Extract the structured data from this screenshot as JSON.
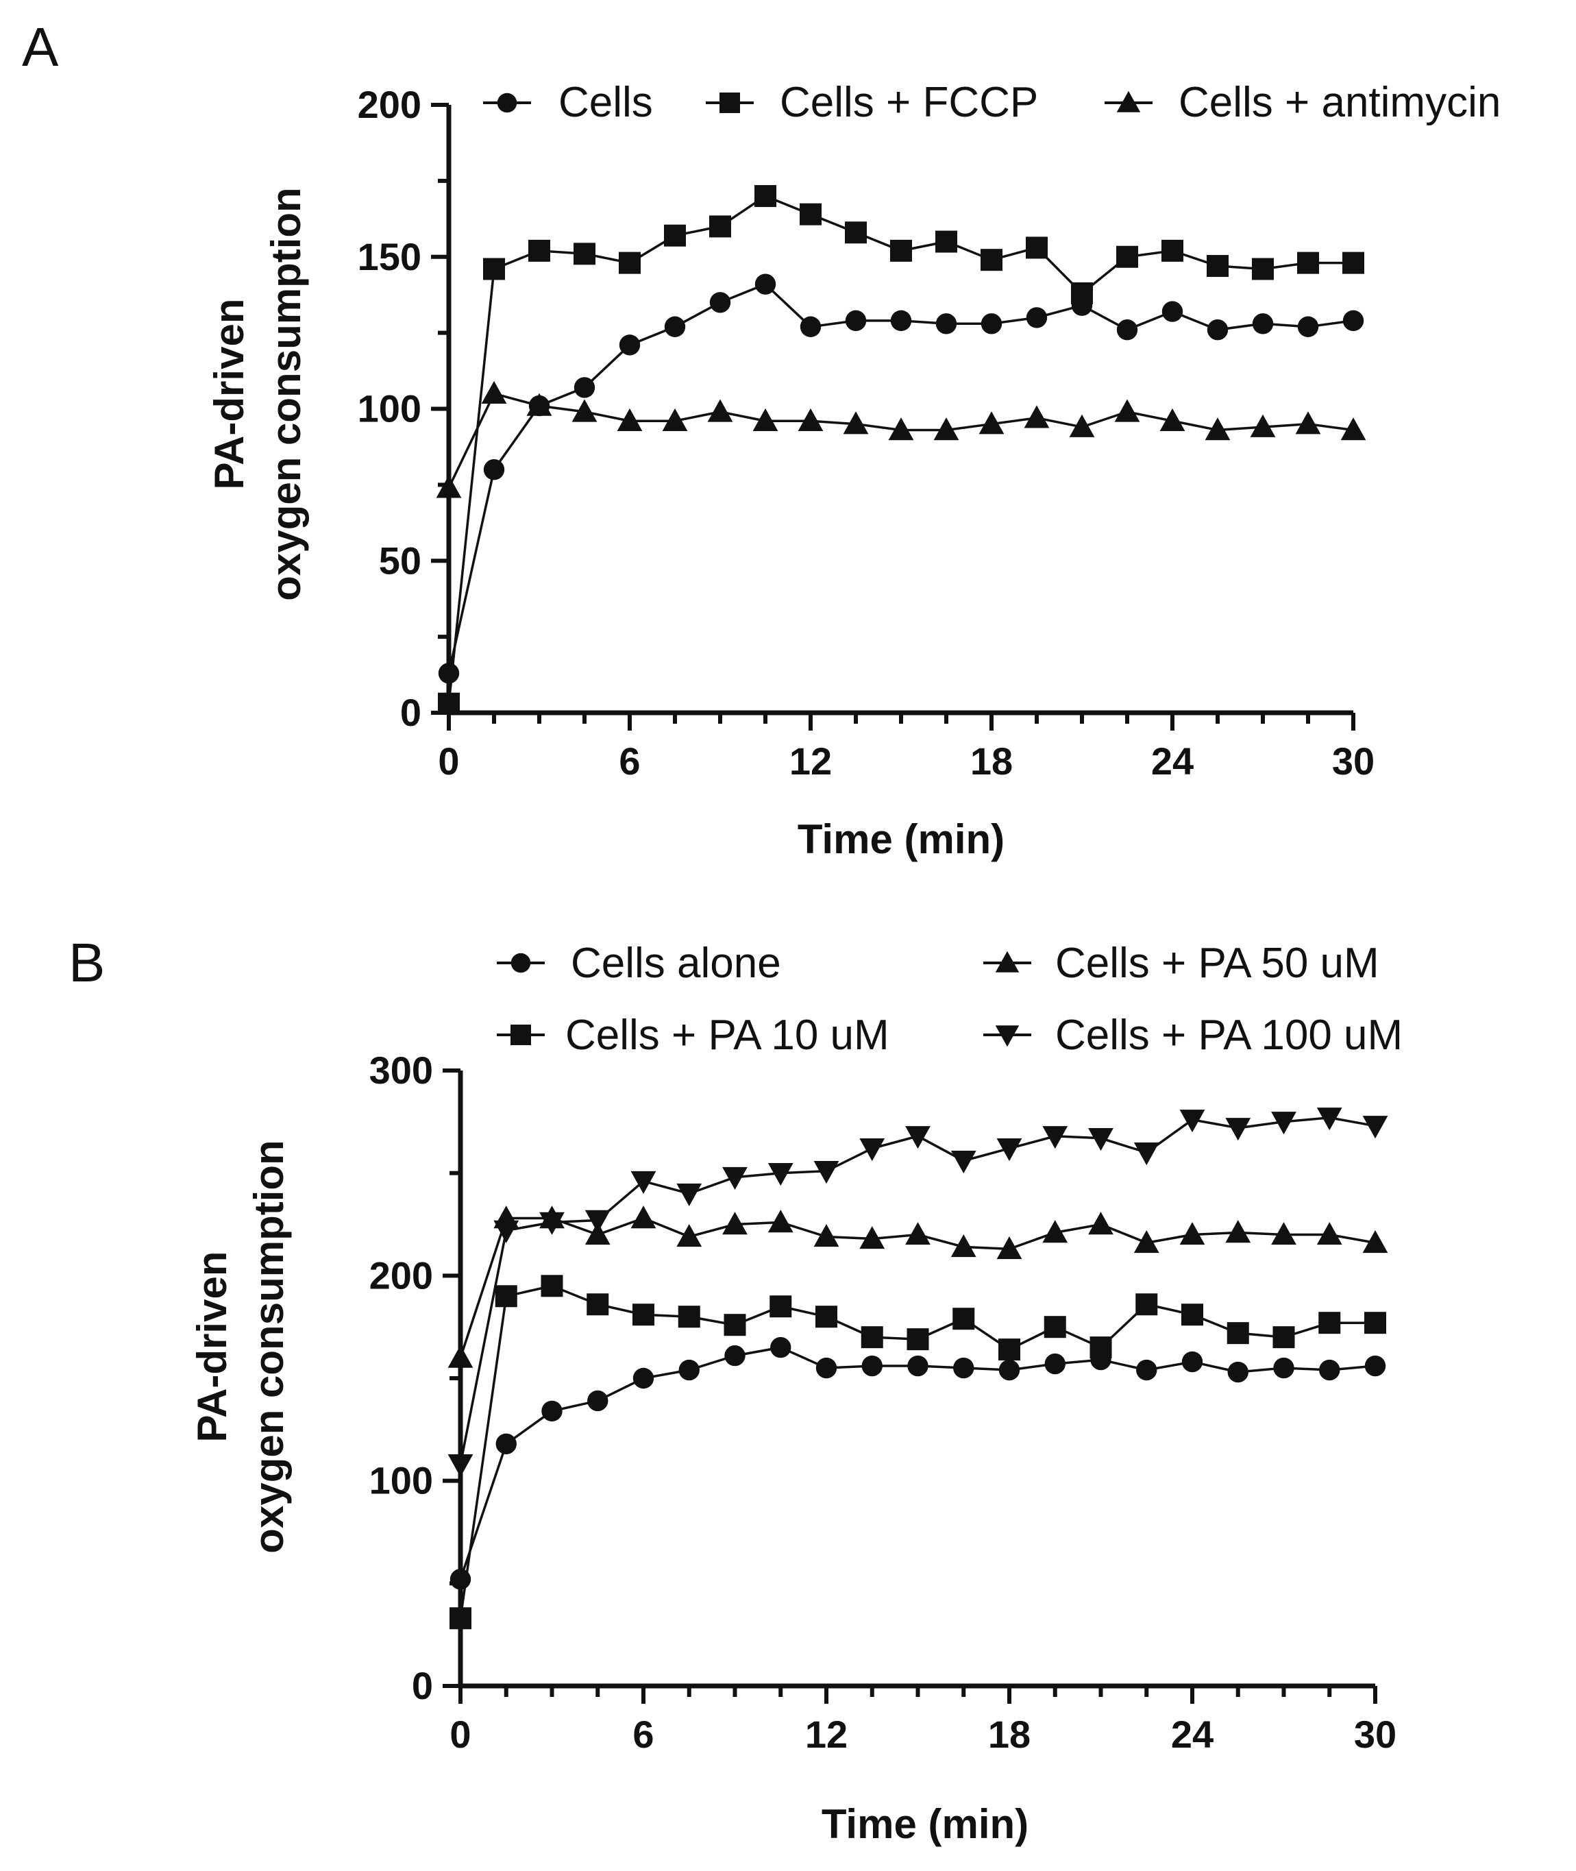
{
  "chart_data": [
    {
      "panel": "A",
      "type": "line",
      "title": "",
      "xlabel": "Time (min)",
      "ylabel_lines": [
        "PA-driven",
        "oxygen consumption"
      ],
      "xlim": [
        0,
        30
      ],
      "ylim": [
        0,
        200
      ],
      "xticks": [
        0,
        6,
        12,
        18,
        24,
        30
      ],
      "yticks": [
        0,
        50,
        100,
        150,
        200
      ],
      "legend_position": "top",
      "series": [
        {
          "name": "Cells",
          "marker": "circle",
          "x": [
            0,
            1.5,
            3,
            4.5,
            6,
            7.5,
            9,
            10.5,
            12,
            13.5,
            15,
            16.5,
            18,
            19.5,
            21,
            22.5,
            24,
            25.5,
            27,
            28.5,
            30
          ],
          "y": [
            13,
            80,
            101,
            107,
            121,
            127,
            135,
            141,
            127,
            129,
            129,
            128,
            128,
            130,
            134,
            126,
            132,
            126,
            128,
            127,
            129
          ]
        },
        {
          "name": "Cells + FCCP",
          "marker": "square",
          "x": [
            0,
            1.5,
            3,
            4.5,
            6,
            7.5,
            9,
            10.5,
            12,
            13.5,
            15,
            16.5,
            18,
            19.5,
            21,
            22.5,
            24,
            25.5,
            27,
            28.5,
            30
          ],
          "y": [
            3,
            146,
            152,
            151,
            148,
            157,
            160,
            170,
            164,
            158,
            152,
            155,
            149,
            153,
            138,
            150,
            152,
            147,
            146,
            148,
            148
          ]
        },
        {
          "name": "Cells + antimycin",
          "marker": "triangle-up",
          "x": [
            0,
            1.5,
            3,
            4.5,
            6,
            7.5,
            9,
            10.5,
            12,
            13.5,
            15,
            16.5,
            18,
            19.5,
            21,
            22.5,
            24,
            25.5,
            27,
            28.5,
            30
          ],
          "y": [
            74,
            105,
            101,
            99,
            96,
            96,
            99,
            96,
            96,
            95,
            93,
            93,
            95,
            97,
            94,
            99,
            96,
            93,
            94,
            95,
            93
          ]
        }
      ]
    },
    {
      "panel": "B",
      "type": "line",
      "title": "",
      "xlabel": "Time (min)",
      "ylabel_lines": [
        "PA-driven",
        "oxygen consumption"
      ],
      "xlim": [
        0,
        30
      ],
      "ylim": [
        0,
        300
      ],
      "xticks": [
        0,
        6,
        12,
        18,
        24,
        30
      ],
      "yticks": [
        0,
        100,
        200,
        300
      ],
      "legend_position": "top",
      "series": [
        {
          "name": "Cells alone",
          "marker": "circle",
          "x": [
            0,
            1.5,
            3,
            4.5,
            6,
            7.5,
            9,
            10.5,
            12,
            13.5,
            15,
            16.5,
            18,
            19.5,
            21,
            22.5,
            24,
            25.5,
            27,
            28.5,
            30
          ],
          "y": [
            52,
            118,
            134,
            139,
            150,
            154,
            161,
            165,
            155,
            156,
            156,
            155,
            154,
            157,
            159,
            154,
            158,
            153,
            155,
            154,
            156
          ]
        },
        {
          "name": "Cells + PA 10 uM",
          "marker": "square",
          "x": [
            0,
            1.5,
            3,
            4.5,
            6,
            7.5,
            9,
            10.5,
            12,
            13.5,
            15,
            16.5,
            18,
            19.5,
            21,
            22.5,
            24,
            25.5,
            27,
            28.5,
            30
          ],
          "y": [
            33,
            190,
            195,
            186,
            181,
            180,
            176,
            185,
            180,
            170,
            169,
            179,
            164,
            175,
            165,
            186,
            181,
            172,
            170,
            177,
            177
          ]
        },
        {
          "name": "Cells + PA 50 uM",
          "marker": "triangle-up",
          "x": [
            0,
            1.5,
            3,
            4.5,
            6,
            7.5,
            9,
            10.5,
            12,
            13.5,
            15,
            16.5,
            18,
            19.5,
            21,
            22.5,
            24,
            25.5,
            27,
            28.5,
            30
          ],
          "y": [
            160,
            228,
            228,
            220,
            228,
            219,
            225,
            226,
            219,
            218,
            220,
            214,
            213,
            221,
            225,
            216,
            220,
            221,
            220,
            220,
            216
          ]
        },
        {
          "name": "Cells + PA 100 uM",
          "marker": "triangle-down",
          "x": [
            0,
            1.5,
            3,
            4.5,
            6,
            7.5,
            9,
            10.5,
            12,
            13.5,
            15,
            16.5,
            18,
            19.5,
            21,
            22.5,
            24,
            25.5,
            27,
            28.5,
            30
          ],
          "y": [
            108,
            222,
            226,
            227,
            246,
            240,
            248,
            250,
            251,
            262,
            268,
            256,
            262,
            268,
            267,
            260,
            276,
            272,
            275,
            277,
            273
          ]
        }
      ]
    }
  ]
}
